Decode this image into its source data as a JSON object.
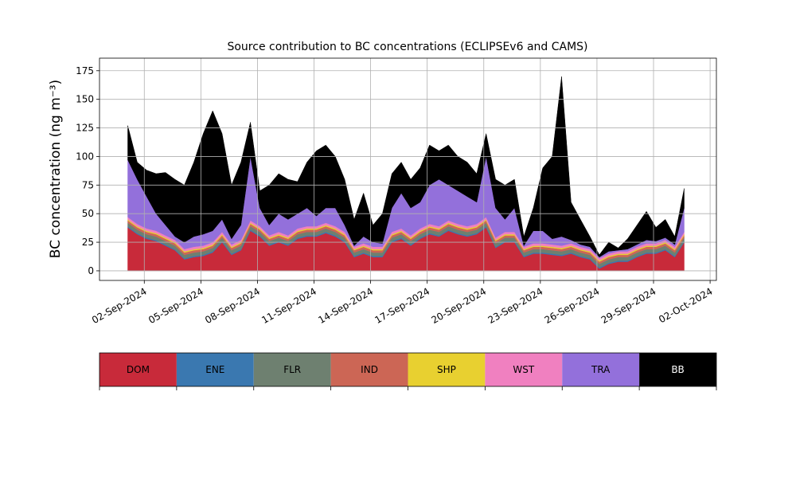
{
  "chart_data": {
    "type": "stacked_area",
    "title": "Source contribution to BC concentrations (ECLIPSEv6 and CAMS)",
    "y_label": "BC concentration (ng m⁻³)",
    "grid": true,
    "x": [
      "2024-09-01T03:00",
      "2024-09-01T15:00",
      "2024-09-02T03:00",
      "2024-09-02T15:00",
      "2024-09-03T03:00",
      "2024-09-03T15:00",
      "2024-09-04T03:00",
      "2024-09-04T15:00",
      "2024-09-05T03:00",
      "2024-09-05T15:00",
      "2024-09-06T03:00",
      "2024-09-06T15:00",
      "2024-09-07T03:00",
      "2024-09-07T15:00",
      "2024-09-08T03:00",
      "2024-09-08T15:00",
      "2024-09-09T03:00",
      "2024-09-09T15:00",
      "2024-09-10T03:00",
      "2024-09-10T15:00",
      "2024-09-11T03:00",
      "2024-09-11T15:00",
      "2024-09-12T03:00",
      "2024-09-12T15:00",
      "2024-09-13T03:00",
      "2024-09-13T15:00",
      "2024-09-14T03:00",
      "2024-09-14T15:00",
      "2024-09-15T03:00",
      "2024-09-15T15:00",
      "2024-09-16T03:00",
      "2024-09-16T15:00",
      "2024-09-17T03:00",
      "2024-09-17T15:00",
      "2024-09-18T03:00",
      "2024-09-18T15:00",
      "2024-09-19T03:00",
      "2024-09-19T15:00",
      "2024-09-20T03:00",
      "2024-09-20T15:00",
      "2024-09-21T03:00",
      "2024-09-21T15:00",
      "2024-09-22T03:00",
      "2024-09-22T15:00",
      "2024-09-23T03:00",
      "2024-09-23T15:00",
      "2024-09-24T03:00",
      "2024-09-24T15:00",
      "2024-09-25T03:00",
      "2024-09-25T15:00",
      "2024-09-26T03:00",
      "2024-09-26T15:00",
      "2024-09-27T03:00",
      "2024-09-27T15:00",
      "2024-09-28T03:00",
      "2024-09-28T15:00",
      "2024-09-29T03:00",
      "2024-09-29T15:00",
      "2024-09-30T03:00",
      "2024-09-30T15:00"
    ],
    "series": [
      {
        "name": "DOM",
        "color": "#c82a3a",
        "values": [
          38,
          32,
          28,
          26,
          22,
          18,
          10,
          12,
          13,
          16,
          25,
          14,
          18,
          35,
          30,
          22,
          25,
          22,
          28,
          30,
          30,
          33,
          30,
          25,
          12,
          15,
          12,
          12,
          25,
          28,
          22,
          28,
          32,
          30,
          35,
          32,
          30,
          32,
          38,
          20,
          25,
          25,
          12,
          15,
          15,
          14,
          13,
          15,
          12,
          10,
          2,
          6,
          8,
          8,
          12,
          15,
          15,
          18,
          12,
          25
        ]
      },
      {
        "name": "ENE",
        "color": "#3a78b0",
        "values": [
          1,
          1,
          1,
          1,
          1,
          1,
          1,
          1,
          1,
          1,
          1,
          1,
          1,
          1,
          1,
          1,
          1,
          1,
          1,
          1,
          1,
          1,
          1,
          1,
          1,
          1,
          1,
          1,
          1,
          1,
          1,
          1,
          1,
          1,
          1,
          1,
          1,
          1,
          1,
          1,
          1,
          1,
          1,
          1,
          1,
          1,
          1,
          1,
          1,
          1,
          1,
          1,
          1,
          1,
          1,
          1,
          1,
          1,
          1,
          1
        ]
      },
      {
        "name": "FLR",
        "color": "#6e8070",
        "values": [
          3,
          3,
          3,
          3,
          3,
          3,
          3,
          3,
          3,
          3,
          3,
          3,
          3,
          3,
          3,
          3,
          3,
          3,
          3,
          3,
          3,
          3,
          3,
          3,
          3,
          3,
          3,
          3,
          3,
          3,
          3,
          3,
          3,
          3,
          3,
          3,
          3,
          3,
          3,
          3,
          3,
          3,
          3,
          3,
          3,
          3,
          3,
          3,
          3,
          3,
          3,
          3,
          3,
          3,
          3,
          3,
          3,
          3,
          3,
          3
        ]
      },
      {
        "name": "IND",
        "color": "#cc6655",
        "values": [
          2,
          2,
          2,
          2,
          2,
          2,
          2,
          2,
          2,
          2,
          2,
          2,
          2,
          2,
          2,
          2,
          2,
          2,
          2,
          2,
          2,
          2,
          2,
          2,
          2,
          2,
          2,
          2,
          2,
          2,
          2,
          2,
          2,
          2,
          2,
          2,
          2,
          2,
          2,
          2,
          2,
          2,
          2,
          2,
          2,
          2,
          2,
          2,
          2,
          2,
          2,
          2,
          2,
          2,
          2,
          2,
          2,
          2,
          2,
          2
        ]
      },
      {
        "name": "SHP",
        "color": "#e8d030",
        "values": [
          1,
          1,
          1,
          1,
          1,
          1,
          1,
          1,
          1,
          1,
          1,
          1,
          1,
          1,
          1,
          1,
          1,
          1,
          1,
          1,
          1,
          1,
          1,
          1,
          1,
          1,
          1,
          1,
          1,
          1,
          1,
          1,
          1,
          1,
          1,
          1,
          1,
          1,
          1,
          1,
          1,
          1,
          1,
          1,
          1,
          1,
          1,
          1,
          1,
          1,
          1,
          1,
          1,
          1,
          1,
          1,
          1,
          1,
          1,
          1
        ]
      },
      {
        "name": "WST",
        "color": "#f080c0",
        "values": [
          2,
          2,
          2,
          2,
          2,
          2,
          2,
          2,
          2,
          2,
          2,
          2,
          2,
          2,
          2,
          2,
          2,
          2,
          2,
          2,
          2,
          2,
          2,
          2,
          2,
          2,
          2,
          2,
          2,
          2,
          2,
          2,
          2,
          2,
          2,
          2,
          2,
          2,
          2,
          2,
          2,
          2,
          2,
          2,
          2,
          2,
          2,
          2,
          2,
          2,
          2,
          2,
          2,
          2,
          2,
          2,
          2,
          2,
          2,
          2
        ]
      },
      {
        "name": "TRA",
        "color": "#9370db",
        "values": [
          50,
          39,
          28,
          15,
          9,
          3,
          6,
          9,
          10,
          10,
          11,
          5,
          13,
          56,
          16,
          9,
          16,
          14,
          13,
          16,
          9,
          13,
          16,
          6,
          1,
          6,
          4,
          3,
          21,
          31,
          24,
          23,
          34,
          41,
          31,
          29,
          26,
          19,
          53,
          26,
          11,
          21,
          1,
          11,
          11,
          5,
          8,
          3,
          2,
          2,
          1,
          2,
          1,
          2,
          2,
          3,
          2,
          2,
          2,
          21
        ]
      },
      {
        "name": "BB",
        "color": "#000000",
        "values": [
          30,
          15,
          23,
          35,
          46,
          50,
          50,
          65,
          88,
          105,
          75,
          47,
          55,
          30,
          15,
          35,
          35,
          35,
          28,
          40,
          57,
          55,
          45,
          40,
          23,
          38,
          15,
          26,
          30,
          27,
          25,
          30,
          35,
          25,
          35,
          30,
          30,
          25,
          20,
          25,
          30,
          25,
          8,
          20,
          55,
          72,
          140,
          33,
          22,
          9,
          2,
          8,
          2,
          9,
          17,
          25,
          12,
          16,
          7,
          17
        ]
      }
    ],
    "xlim": [
      "2024-08-30T15:00",
      "2024-10-02T08:00"
    ],
    "xticks": [
      {
        "value": "2024-09-02",
        "label": "02-Sep-2024"
      },
      {
        "value": "2024-09-05",
        "label": "05-Sep-2024"
      },
      {
        "value": "2024-09-08",
        "label": "08-Sep-2024"
      },
      {
        "value": "2024-09-11",
        "label": "11-Sep-2024"
      },
      {
        "value": "2024-09-14",
        "label": "14-Sep-2024"
      },
      {
        "value": "2024-09-17",
        "label": "17-Sep-2024"
      },
      {
        "value": "2024-09-20",
        "label": "20-Sep-2024"
      },
      {
        "value": "2024-09-23",
        "label": "23-Sep-2024"
      },
      {
        "value": "2024-09-26",
        "label": "26-Sep-2024"
      },
      {
        "value": "2024-09-29",
        "label": "29-Sep-2024"
      },
      {
        "value": "2024-10-02",
        "label": "02-Oct-2024"
      }
    ],
    "ylim": [
      -8.4,
      186
    ],
    "yticks": [
      0,
      25,
      50,
      75,
      100,
      125,
      150,
      175
    ]
  }
}
